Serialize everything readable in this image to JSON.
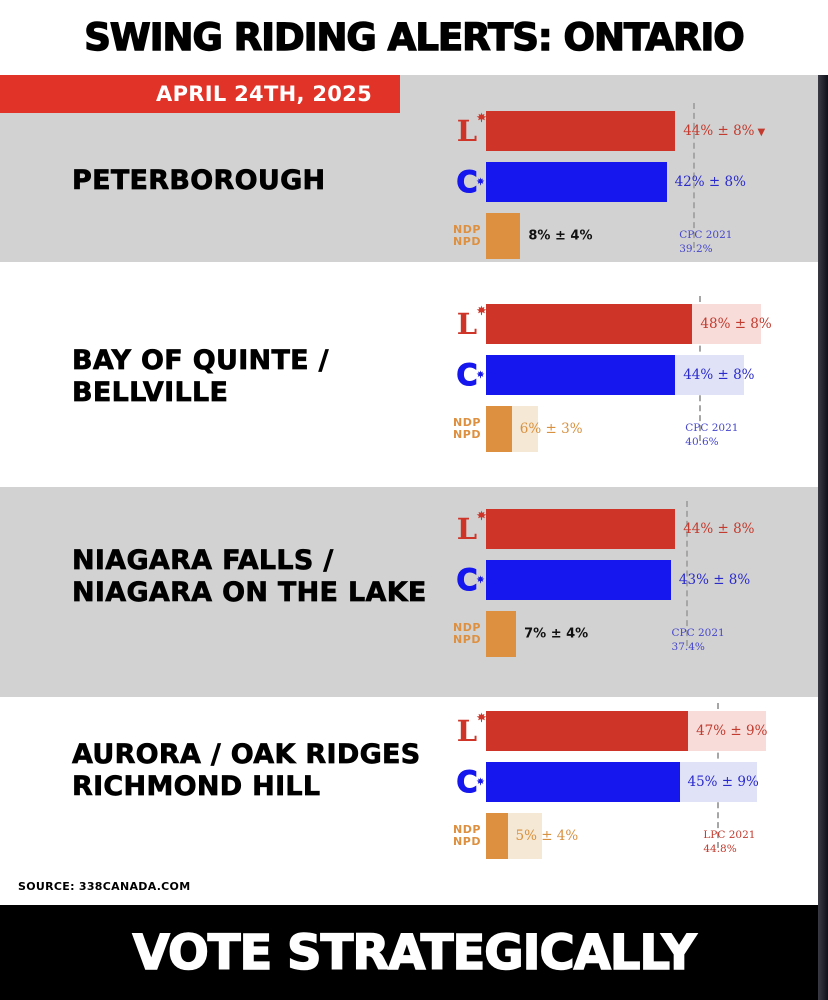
{
  "header": {
    "title": "SWING RIDING ALERTS: ONTARIO",
    "date_banner": "APRIL 24TH, 2025"
  },
  "source_note": "SOURCE: 338CANADA.COM",
  "footer": {
    "text": "VOTE STRATEGICALLY"
  },
  "parties": {
    "liberal": {
      "abbr": "L",
      "color": "#cf3428"
    },
    "conservative": {
      "abbr": "C",
      "color": "#1616ee"
    },
    "ndp": {
      "line1": "NDP",
      "line2": "NPD",
      "color": "#dd9040"
    }
  },
  "colors": {
    "banner_red": "#e23328",
    "section_gray": "#d2d2d2",
    "liberal_red": "#cf3428",
    "liberal_red_light": "#f7dcda",
    "conservative_blue": "#1616ee",
    "conservative_blue_light": "#e0e2f8",
    "ndp_orange": "#dd9040",
    "ndp_orange_light": "#f5e8d4",
    "footer_black": "#000000"
  },
  "chart_data": [
    {
      "type": "bar",
      "orientation": "horizontal",
      "riding": "PETERBOROUGH",
      "riding_lines": [
        "PETERBOROUGH"
      ],
      "ci_visible": false,
      "series": [
        {
          "party": "LPC",
          "value": 44,
          "moe": 8,
          "label": "44% ± 8%",
          "arrow": "▼",
          "color": "#cf3428"
        },
        {
          "party": "CPC",
          "value": 42,
          "moe": 8,
          "label": "42% ± 8%",
          "color": "#1616ee"
        },
        {
          "party": "NDP",
          "value": 8,
          "moe": 4,
          "label": "8% ± 4%",
          "color": "#dd9040"
        }
      ],
      "note": {
        "line1": "CPC 2021",
        "line2": "39.2%",
        "value": 39.2
      }
    },
    {
      "type": "bar",
      "orientation": "horizontal",
      "riding": "BAY OF QUINTE / BELLVILLE",
      "riding_lines": [
        "BAY OF QUINTE /",
        "BELLVILLE"
      ],
      "ci_visible": true,
      "series": [
        {
          "party": "LPC",
          "value": 48,
          "moe": 8,
          "label": "48% ± 8%",
          "color": "#cf3428"
        },
        {
          "party": "CPC",
          "value": 44,
          "moe": 8,
          "label": "44% ± 8%",
          "color": "#1616ee"
        },
        {
          "party": "NDP",
          "value": 6,
          "moe": 3,
          "label": "6% ± 3%",
          "color": "#dd9040"
        }
      ],
      "note": {
        "line1": "CPC 2021",
        "line2": "40.6%",
        "value": 40.6
      }
    },
    {
      "type": "bar",
      "orientation": "horizontal",
      "riding": "NIAGARA FALLS / NIAGARA ON THE LAKE",
      "riding_lines": [
        "NIAGARA FALLS /",
        "NIAGARA ON THE LAKE"
      ],
      "ci_visible": false,
      "series": [
        {
          "party": "LPC",
          "value": 44,
          "moe": 8,
          "label": "44% ± 8%",
          "color": "#cf3428"
        },
        {
          "party": "CPC",
          "value": 43,
          "moe": 8,
          "label": "43% ± 8%",
          "color": "#1616ee"
        },
        {
          "party": "NDP",
          "value": 7,
          "moe": 4,
          "label": "7% ± 4%",
          "color": "#dd9040"
        }
      ],
      "note": {
        "line1": "CPC 2021",
        "line2": "37.4%",
        "value": 37.4
      }
    },
    {
      "type": "bar",
      "orientation": "horizontal",
      "riding": "AURORA / OAK RIDGES RICHMOND HILL",
      "riding_lines": [
        "AURORA / OAK RIDGES",
        "RICHMOND HILL"
      ],
      "ci_visible": true,
      "series": [
        {
          "party": "LPC",
          "value": 47,
          "moe": 9,
          "label": "47% ± 9%",
          "color": "#cf3428"
        },
        {
          "party": "CPC",
          "value": 45,
          "moe": 9,
          "label": "45% ± 9%",
          "color": "#1616ee"
        },
        {
          "party": "NDP",
          "value": 5,
          "moe": 4,
          "label": "5% ± 4%",
          "color": "#dd9040"
        }
      ],
      "note": {
        "line1": "LPC 2021",
        "line2": "44.8%",
        "value": 44.8
      }
    }
  ]
}
